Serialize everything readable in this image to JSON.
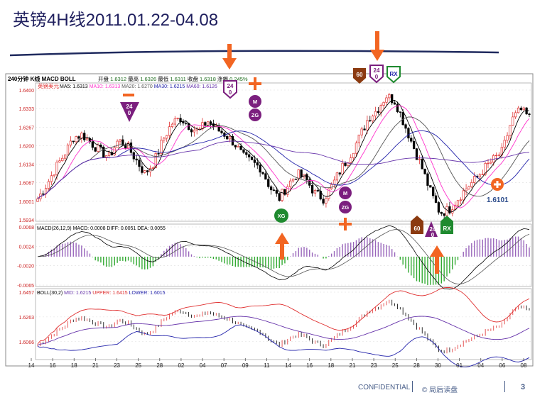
{
  "slide": {
    "title": "英镑4H线2011.01.22-04.08",
    "footer_confidential": "CONFIDENTIAL",
    "footer_copyright": "© 局后读盘",
    "page_number": "3"
  },
  "colors": {
    "title": "#1f1f5e",
    "bull": "#e03030",
    "bear": "#000000",
    "ma5": "#000000",
    "ma10": "#ff33cc",
    "ma20": "#555555",
    "ma30": "#2222aa",
    "ma60": "#6633aa",
    "boll_upper": "#e03030",
    "boll_mid": "#6633aa",
    "boll_lower": "#2222aa",
    "macd_pos": "#9966bb",
    "macd_neg": "#33aa33",
    "arrow": "#f26522",
    "marker_purple": "#7b1f7e",
    "marker_brown": "#8b3a10",
    "marker_green": "#1f8a2f"
  },
  "chart_data": {
    "type": "candlestick",
    "header": {
      "period": "240分钟 K线",
      "indicators": "MACD BOLL",
      "open_label": "开盘",
      "open": "1.6312",
      "high_label": "最高",
      "high": "1.6326",
      "low_label": "最低",
      "low": "1.6311",
      "close_label": "收盘",
      "close": "1.6318",
      "change_label": "涨幅",
      "change": "0.245%"
    },
    "instrument": "英镑美元",
    "ma_legend": [
      {
        "label": "MA5: 1.6313",
        "color": "#000000"
      },
      {
        "label": "MA10: 1.6313",
        "color": "#ff33cc"
      },
      {
        "label": "MA20: 1.6270",
        "color": "#555555"
      },
      {
        "label": "MA30: 1.6215",
        "color": "#2222aa"
      },
      {
        "label": "MA60: 1.6126",
        "color": "#6633aa"
      }
    ],
    "price_axis": {
      "min": 1.5934,
      "max": 1.64,
      "ticks": [
        "1.6400",
        "1.6333",
        "1.6267",
        "1.6200",
        "1.6134",
        "1.6067",
        "1.6001",
        "1.5934"
      ]
    },
    "macd": {
      "legend": "MACD(26,12,9) MACD: 0.0008 DIFF: 0.0051 DEA: 0.0055",
      "axis": {
        "min": -0.0065,
        "max": 0.0068,
        "ticks": [
          "0.0068",
          "0.0024",
          "-0.0020",
          "-0.0065"
        ]
      }
    },
    "boll": {
      "legend_prefix": "BOLL(30,2)",
      "mid": "MID: 1.6215",
      "upper": "UPPER: 1.6415",
      "lower": "LOWER: 1.6015",
      "axis": {
        "min": 1.59,
        "max": 1.6457,
        "ticks": [
          "1.6457",
          "1.6263",
          "1.6066"
        ]
      }
    },
    "x_ticks": [
      "14",
      "16",
      "18",
      "21",
      "23",
      "25",
      "28",
      "02",
      "04",
      "07",
      "09",
      "11",
      "14",
      "16",
      "18",
      "21",
      "23",
      "25",
      "28",
      "30",
      "01",
      "04",
      "06",
      "08"
    ],
    "close_path": [
      1.601,
      1.606,
      1.612,
      1.617,
      1.623,
      1.624,
      1.621,
      1.618,
      1.616,
      1.622,
      1.62,
      1.615,
      1.61,
      1.614,
      1.622,
      1.628,
      1.63,
      1.627,
      1.625,
      1.629,
      1.626,
      1.624,
      1.621,
      1.616,
      1.614,
      1.612,
      1.605,
      1.601,
      1.606,
      1.61,
      1.608,
      1.603,
      1.601,
      1.606,
      1.612,
      1.617,
      1.623,
      1.63,
      1.633,
      1.638,
      1.636,
      1.628,
      1.62,
      1.612,
      1.603,
      1.596,
      1.597,
      1.601,
      1.605,
      1.608,
      1.612,
      1.615,
      1.618,
      1.629,
      1.633,
      1.63
    ],
    "annotations": {
      "badge_24": [
        "24",
        "0"
      ],
      "badge_60": "60",
      "badge_rx": "RX",
      "badge_xg": "XG",
      "circle_m": "M",
      "circle_zg": "ZG",
      "price_label": "1.6101"
    }
  }
}
